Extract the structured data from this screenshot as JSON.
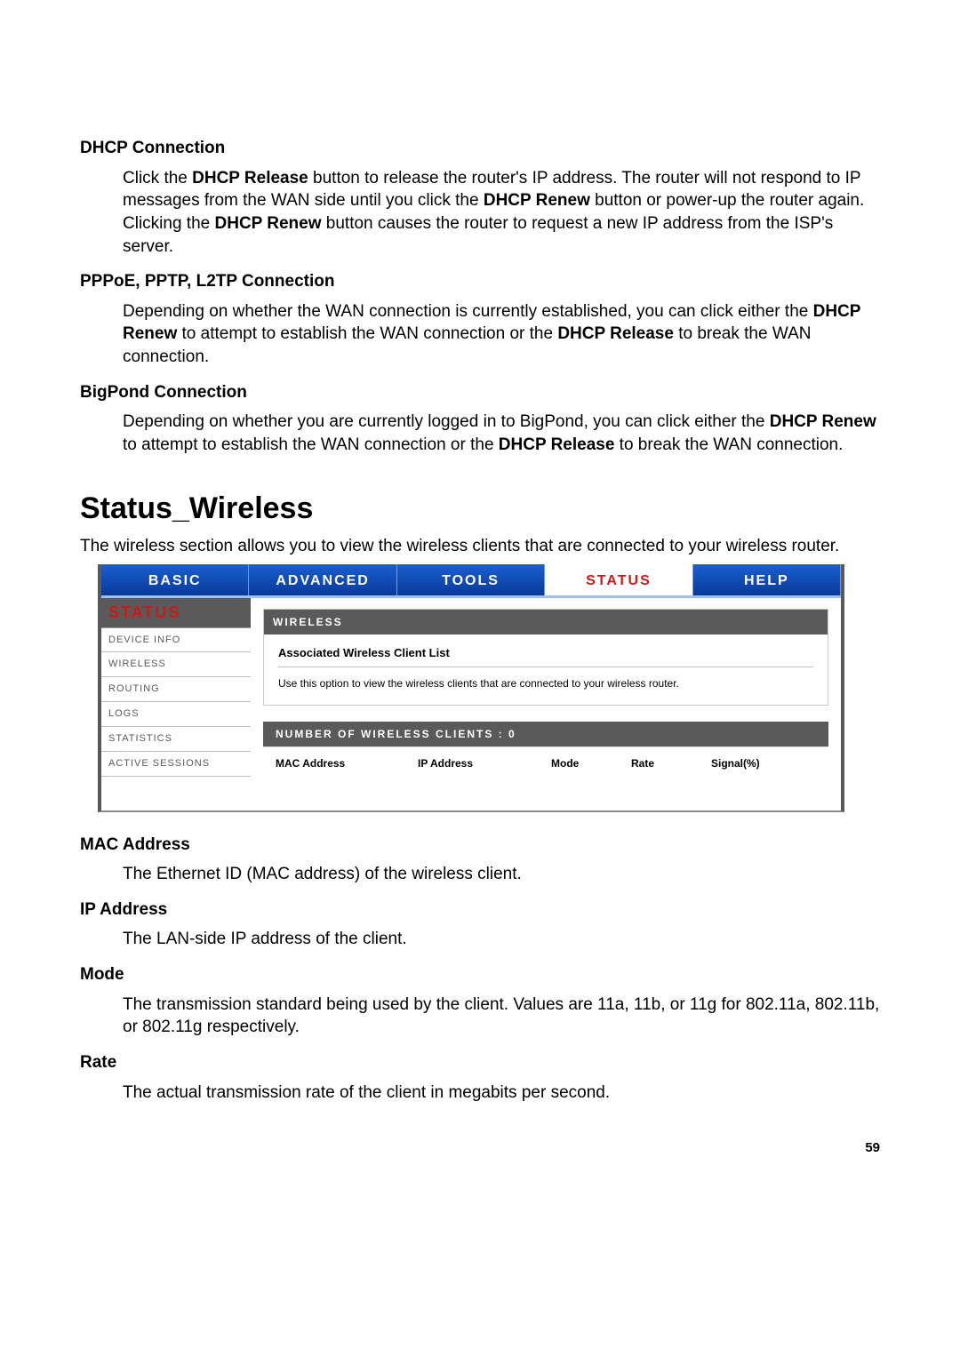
{
  "sections": {
    "dhcp": {
      "title": "DHCP Connection",
      "p1a": "Click the ",
      "b1": "DHCP Release",
      "p1b": " button to release the router's IP address. The router will not respond to IP messages from the WAN side until you click the ",
      "b2": "DHCP Renew",
      "p1c": " button or power-up the router again. Clicking the ",
      "b3": "DHCP Renew",
      "p1d": " button causes the router to request a new IP address from the ISP's server."
    },
    "pppoe": {
      "title": "PPPoE, PPTP, L2TP Connection",
      "p1a": "Depending on whether the WAN connection is currently established, you can click either the ",
      "b1": "DHCP Renew",
      "p1b": " to attempt to establish the WAN connection or the ",
      "b2": "DHCP Release",
      "p1c": " to break the WAN connection."
    },
    "bigpond": {
      "title": "BigPond Connection",
      "p1a": "Depending on whether you are currently logged in to BigPond, you can click either the ",
      "b1": "DHCP Renew",
      "p1b": " to attempt to establish the WAN connection or the ",
      "b2": "DHCP Release",
      "p1c": " to break the WAN connection."
    }
  },
  "heading": "Status_Wireless",
  "intro": "The wireless section allows you to view the wireless clients that are connected to your wireless router.",
  "router": {
    "tabs": [
      "BASIC",
      "ADVANCED",
      "TOOLS",
      "STATUS",
      "HELP"
    ],
    "active_tab_index": 3,
    "sidebar_title": "STATUS",
    "sidebar_items": [
      "DEVICE INFO",
      "WIRELESS",
      "ROUTING",
      "LOGS",
      "STATISTICS",
      "ACTIVE SESSIONS"
    ],
    "card1": {
      "head": "WIRELESS",
      "subtitle": "Associated Wireless Client List",
      "desc": "Use this option to view the wireless clients that are connected to your wireless router."
    },
    "card2": {
      "head": "NUMBER OF WIRELESS CLIENTS : 0",
      "cols": [
        "MAC Address",
        "IP Address",
        "Mode",
        "Rate",
        "Signal(%)"
      ]
    }
  },
  "defs": {
    "mac": {
      "t": "MAC Address",
      "d": "The Ethernet ID (MAC address) of the wireless client."
    },
    "ip": {
      "t": "IP Address",
      "d": "The LAN-side IP address of the client."
    },
    "mode": {
      "t": "Mode",
      "d": "The transmission standard being used by the client. Values are 11a, 11b, or 11g for 802.11a, 802.11b, or 802.11g respectively."
    },
    "rate": {
      "t": "Rate",
      "d": "The actual transmission rate of the client in megabits per second."
    }
  },
  "page_number": "59"
}
